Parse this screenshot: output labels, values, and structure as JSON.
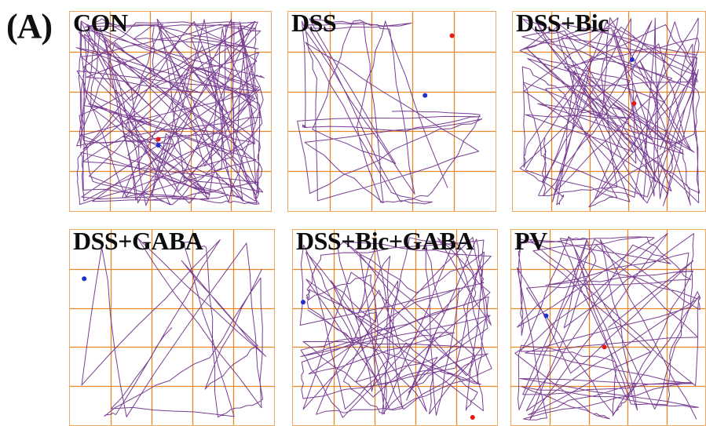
{
  "figure_label": "(A)",
  "colors": {
    "grid": "#e88a2a",
    "track": "#6a2a86",
    "marker_red": "#e81818",
    "marker_blue": "#2030c8"
  },
  "panels": [
    {
      "id": "con",
      "title": "CON",
      "activity": "high"
    },
    {
      "id": "dss",
      "title": "DSS",
      "activity": "low"
    },
    {
      "id": "dss-bic",
      "title": "DSS+Bic",
      "activity": "high"
    },
    {
      "id": "dss-gaba",
      "title": "DSS+GABA",
      "activity": "low"
    },
    {
      "id": "dss-bic-gaba",
      "title": "DSS+Bic+GABA",
      "activity": "high"
    },
    {
      "id": "pv",
      "title": "PV",
      "activity": "medium"
    }
  ]
}
